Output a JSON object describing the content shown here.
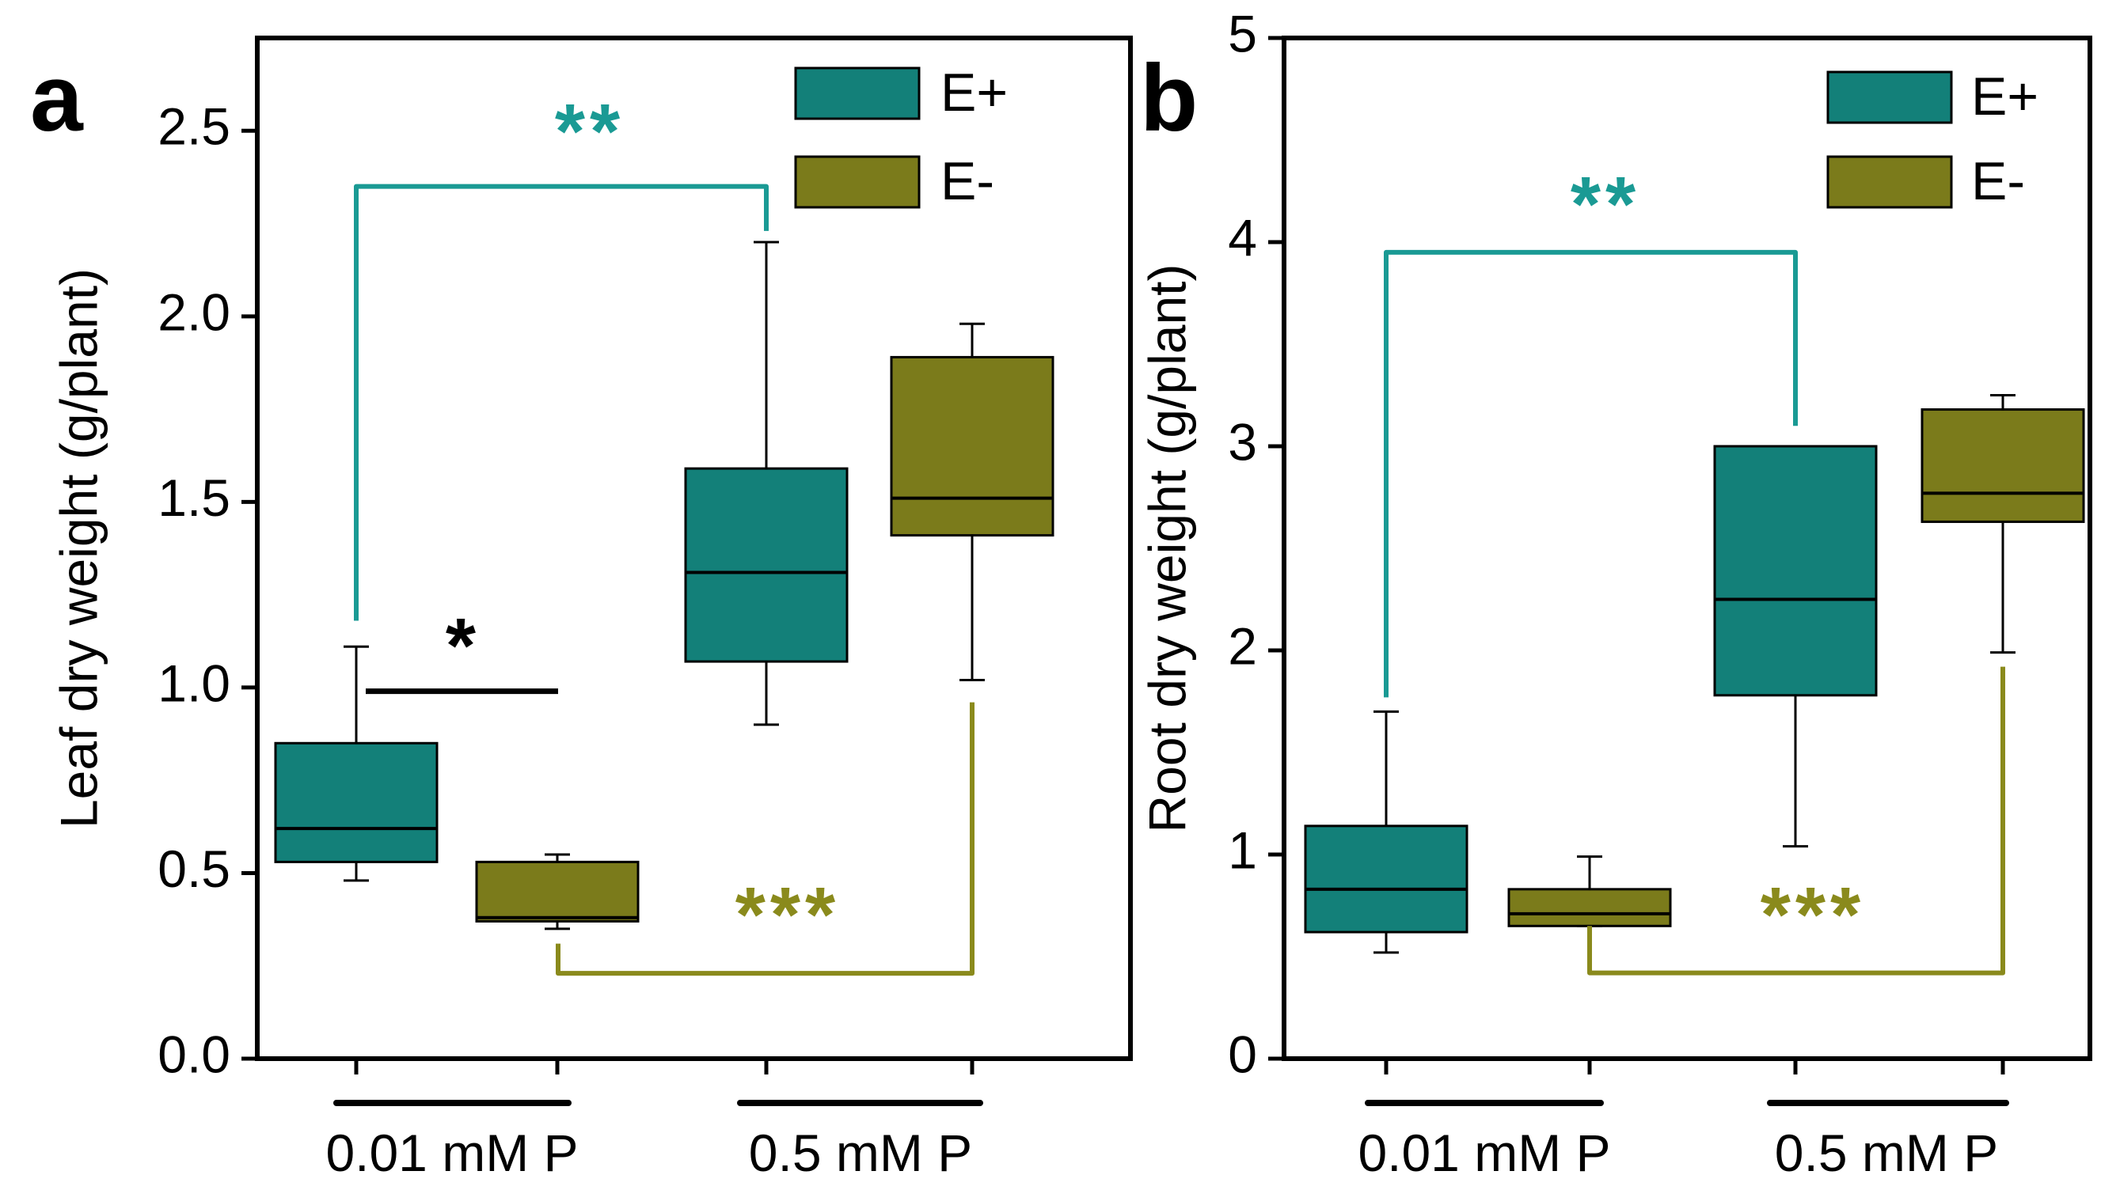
{
  "colors": {
    "e_plus": "#138079",
    "e_minus": "#7b7b1b",
    "star_e_plus": "#1a9a94",
    "star_e_minus": "#8a8a1c",
    "axis": "#000000"
  },
  "chart_data": [
    {
      "panel_label": "a",
      "type": "box",
      "ylabel": "Leaf dry weight (g/plant)",
      "ylim": [
        0,
        2.75
      ],
      "yticks": [
        "0.0",
        "0.5",
        "1.0",
        "1.5",
        "2.0",
        "2.5"
      ],
      "ytick_values": [
        0,
        0.5,
        1.0,
        1.5,
        2.0,
        2.5
      ],
      "groups": [
        "0.01 mM P",
        "0.5 mM P"
      ],
      "legend": {
        "placement": "top-right",
        "entries": [
          {
            "label": "E+",
            "color": "#138079"
          },
          {
            "label": "E-",
            "color": "#7b7b1b"
          }
        ]
      },
      "boxes": [
        {
          "group": "0.01 mM P",
          "series": "E+",
          "min": 0.48,
          "q1": 0.53,
          "median": 0.62,
          "q3": 0.85,
          "max": 1.11
        },
        {
          "group": "0.01 mM P",
          "series": "E-",
          "min": 0.35,
          "q1": 0.37,
          "median": 0.38,
          "q3": 0.53,
          "max": 0.55
        },
        {
          "group": "0.5 mM P",
          "series": "E+",
          "min": 0.9,
          "q1": 1.07,
          "median": 1.31,
          "q3": 1.59,
          "max": 2.2
        },
        {
          "group": "0.5 mM P",
          "series": "E-",
          "min": 1.02,
          "q1": 1.41,
          "median": 1.51,
          "q3": 1.89,
          "max": 1.98
        }
      ],
      "annotations": [
        {
          "text": "**",
          "series": "E+",
          "between": [
            "0.01 mM P",
            "0.5 mM P"
          ]
        },
        {
          "text": "*",
          "series": "black",
          "between": [
            "E+",
            "E-"
          ],
          "group": "0.01 mM P"
        },
        {
          "text": "***",
          "series": "E-",
          "between": [
            "0.01 mM P",
            "0.5 mM P"
          ]
        }
      ]
    },
    {
      "panel_label": "b",
      "type": "box",
      "ylabel": "Root dry weight (g/plant)",
      "ylim": [
        0,
        5
      ],
      "yticks": [
        "0",
        "1",
        "2",
        "3",
        "4",
        "5"
      ],
      "ytick_values": [
        0,
        1,
        2,
        3,
        4,
        5
      ],
      "groups": [
        "0.01 mM P",
        "0.5 mM P"
      ],
      "legend": {
        "placement": "top-right",
        "entries": [
          {
            "label": "E+",
            "color": "#138079"
          },
          {
            "label": "E-",
            "color": "#7b7b1b"
          }
        ]
      },
      "boxes": [
        {
          "group": "0.01 mM P",
          "series": "E+",
          "min": 0.52,
          "q1": 0.62,
          "median": 0.83,
          "q3": 1.14,
          "max": 1.7
        },
        {
          "group": "0.01 mM P",
          "series": "E-",
          "min": 0.65,
          "q1": 0.65,
          "median": 0.71,
          "q3": 0.83,
          "max": 0.99
        },
        {
          "group": "0.5 mM P",
          "series": "E+",
          "min": 1.04,
          "q1": 1.78,
          "median": 2.25,
          "q3": 3.0,
          "max": 3.0
        },
        {
          "group": "0.5 mM P",
          "series": "E-",
          "min": 1.99,
          "q1": 2.63,
          "median": 2.77,
          "q3": 3.18,
          "max": 3.25
        }
      ],
      "annotations": [
        {
          "text": "**",
          "series": "E+",
          "between": [
            "0.01 mM P",
            "0.5 mM P"
          ]
        },
        {
          "text": "***",
          "series": "E-",
          "between": [
            "0.01 mM P",
            "0.5 mM P"
          ]
        }
      ]
    }
  ]
}
